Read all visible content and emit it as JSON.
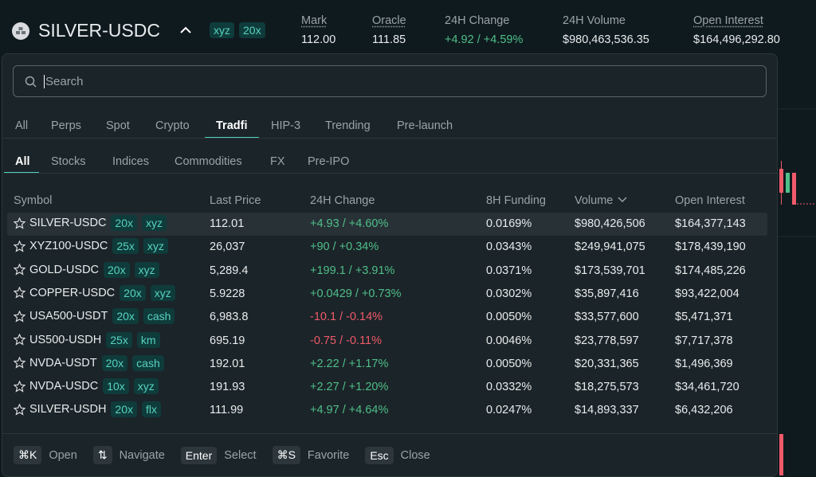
{
  "header": {
    "symbol": "SILVER-USDC",
    "badges": [
      "xyz",
      "20x"
    ],
    "stats": [
      {
        "label": "Mark",
        "value": "112.00"
      },
      {
        "label": "Oracle",
        "value": "111.85"
      },
      {
        "label": "24H Change",
        "value": "+4.92 / +4.59%"
      },
      {
        "label": "24H Volume",
        "value": "$980,463,536.35"
      },
      {
        "label": "Open Interest",
        "value": "$164,496,292.80"
      }
    ]
  },
  "search": {
    "placeholder": "Search"
  },
  "tabs": [
    "All",
    "Perps",
    "Spot",
    "Crypto",
    "Tradfi",
    "HIP-3",
    "Trending",
    "Pre-launch"
  ],
  "subtabs": [
    "All",
    "Stocks",
    "Indices",
    "Commodities",
    "FX",
    "Pre-IPO"
  ],
  "table": {
    "columns": [
      "Symbol",
      "Last Price",
      "24H Change",
      "8H Funding",
      "Volume",
      "Open Interest"
    ],
    "rows": [
      [
        "SILVER-USDC",
        "20x",
        "xyz",
        "112.01",
        "+4.93 / +4.60%",
        "0.0169%",
        "$980,426,506",
        "$164,377,143"
      ],
      [
        "XYZ100-USDC",
        "25x",
        "xyz",
        "26,037",
        "+90 / +0.34%",
        "0.0343%",
        "$249,941,075",
        "$178,439,190"
      ],
      [
        "GOLD-USDC",
        "20x",
        "xyz",
        "5,289.4",
        "+199.1 / +3.91%",
        "0.0371%",
        "$173,539,701",
        "$174,485,226"
      ],
      [
        "COPPER-USDC",
        "20x",
        "xyz",
        "5.9228",
        "+0.0429 / +0.73%",
        "0.0302%",
        "$35,897,416",
        "$93,422,004"
      ],
      [
        "USA500-USDT",
        "20x",
        "cash",
        "6,983.8",
        "-10.1 / -0.14%",
        "0.0050%",
        "$33,577,600",
        "$5,471,371"
      ],
      [
        "US500-USDH",
        "25x",
        "km",
        "695.19",
        "-0.75 / -0.11%",
        "0.0046%",
        "$23,778,597",
        "$7,717,378"
      ],
      [
        "NVDA-USDT",
        "20x",
        "cash",
        "192.01",
        "+2.22 / +1.17%",
        "0.0050%",
        "$20,331,365",
        "$1,496,369"
      ],
      [
        "NVDA-USDC",
        "10x",
        "xyz",
        "191.93",
        "+2.27 / +1.20%",
        "0.0332%",
        "$18,275,573",
        "$34,461,720"
      ],
      [
        "SILVER-USDH",
        "20x",
        "flx",
        "111.99",
        "+4.97 / +4.64%",
        "0.0247%",
        "$14,893,337",
        "$6,432,206"
      ]
    ]
  },
  "shortcuts": [
    {
      "key": "⌘K",
      "label": "Open"
    },
    {
      "key": "⇅",
      "label": "Navigate"
    },
    {
      "key": "Enter",
      "label": "Select"
    },
    {
      "key": "⌘S",
      "label": "Favorite"
    },
    {
      "key": "Esc",
      "label": "Close"
    }
  ]
}
